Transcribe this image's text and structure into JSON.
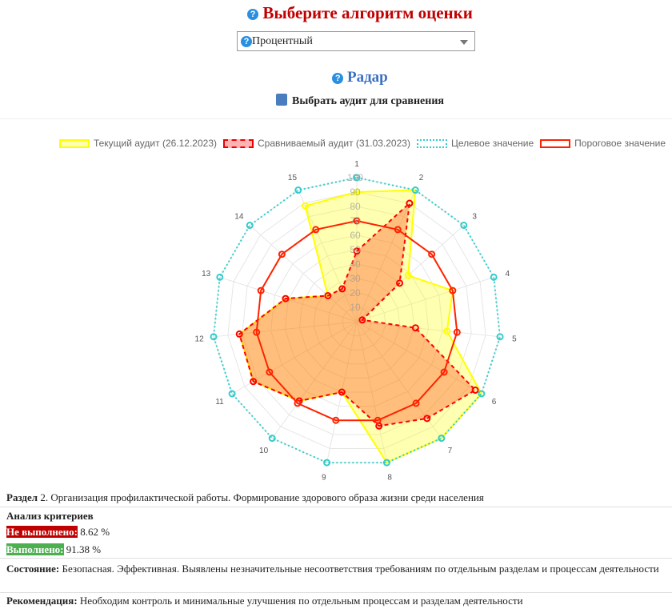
{
  "header": {
    "title": "Выберите алгоритм оценки",
    "help_icon": "question-circle-icon"
  },
  "algorithm_select": {
    "value": "Процентный"
  },
  "radar": {
    "title": "Радар",
    "compare_label": "Выбрать аудит для сравнения"
  },
  "colors": {
    "current": "#ffff00",
    "compared": "#ff0000",
    "target": "#33cccc",
    "threshold": "#ff2200"
  },
  "chart_data": {
    "type": "radar",
    "categories": [
      "1",
      "2",
      "3",
      "4",
      "5",
      "6",
      "7",
      "8",
      "9",
      "10",
      "11",
      "12",
      "13",
      "14",
      "15"
    ],
    "rlim": [
      0,
      100
    ],
    "ticks": [
      "10",
      "20",
      "30",
      "40",
      "50",
      "60",
      "70",
      "80",
      "90",
      "100"
    ],
    "legend_position": "top-right",
    "series": [
      {
        "name": "Текущий аудит (26.12.2023)",
        "values": [
          90,
          100,
          48,
          70,
          63,
          100,
          100,
          100,
          50,
          68,
          83,
          82,
          52,
          27,
          88
        ]
      },
      {
        "name": "Сравниваемый аудит (31.03.2023)",
        "values": [
          49,
          90,
          40,
          4,
          41,
          95,
          83,
          74,
          50,
          68,
          83,
          82,
          52,
          27,
          25
        ]
      },
      {
        "name": "Целевое значение",
        "values": [
          100,
          100,
          100,
          100,
          100,
          100,
          100,
          100,
          100,
          100,
          100,
          100,
          100,
          100,
          100
        ]
      },
      {
        "name": "Пороговое значение",
        "values": [
          70,
          70,
          70,
          70,
          70,
          70,
          70,
          70,
          70,
          70,
          70,
          70,
          70,
          70,
          70
        ]
      }
    ]
  },
  "info": {
    "section_label": "Раздел",
    "section_text": "2. Организация профилактической работы. Формирование здорового образа жизни среди населения",
    "analysis_label": "Анализ критериев",
    "failed_label": "Не выполнено:",
    "failed_value": "8.62 %",
    "done_label": "Выполнено:",
    "done_value": "91.38 %",
    "state_label": "Состояние:",
    "state_text": "Безопасная. Эффективная. Выявлены незначительные несоответствия требованиям по отдельным разделам и процессам деятельности",
    "rec_label": "Рекомендация:",
    "rec_text": "Необходим контроль и минимальные улучшения по отдельным процессам и разделам деятельности"
  }
}
